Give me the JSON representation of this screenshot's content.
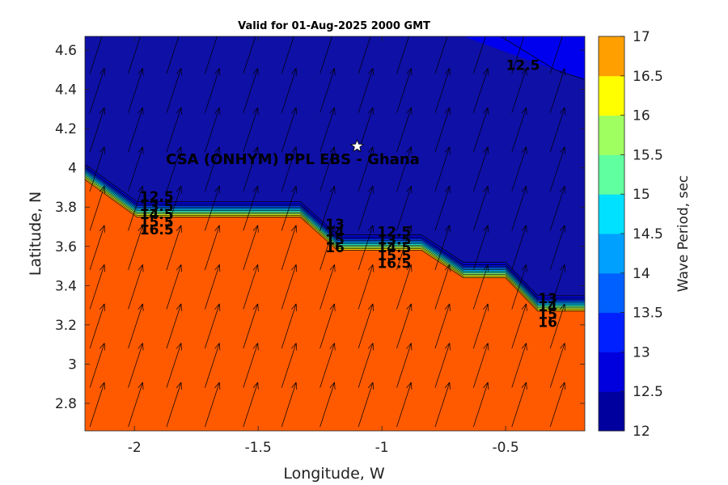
{
  "chart_data": {
    "type": "heatmap",
    "subtype": "filled-contour with direction arrows",
    "title": "Valid for 01-Aug-2025 2000 GMT",
    "xlabel": "Longitude, W",
    "ylabel": "Latitude, N",
    "xlim": [
      -2.2,
      -0.18
    ],
    "ylim": [
      2.66,
      4.67
    ],
    "xticks": [
      -2,
      -1.5,
      -1,
      -0.5
    ],
    "xtick_labels": [
      "-2",
      "-1.5",
      "-1",
      "-0.5"
    ],
    "yticks": [
      2.8,
      3,
      3.2,
      3.4,
      3.6,
      3.8,
      4,
      4.2,
      4.4,
      4.6
    ],
    "ytick_labels": [
      "2.8",
      "3",
      "3.2",
      "3.4",
      "3.6",
      "3.8",
      "4",
      "4.2",
      "4.4",
      "4.6"
    ],
    "grid": false,
    "colorbar": {
      "label": "Wave Period, sec",
      "range": [
        12,
        17
      ],
      "ticks": [
        12,
        12.5,
        13,
        13.5,
        14,
        14.5,
        15,
        15.5,
        16,
        16.5,
        17
      ],
      "tick_labels": [
        "12",
        "12.5",
        "13",
        "13.5",
        "14",
        "14.5",
        "15",
        "15.5",
        "16",
        "16.5",
        "17"
      ],
      "colors": [
        "#00009f",
        "#0000df",
        "#0020ff",
        "#0060ff",
        "#00a0ff",
        "#00e0ff",
        "#60ffa0",
        "#a0ff60",
        "#ffff00",
        "#ffa000",
        "#ff5800"
      ]
    },
    "field": {
      "low_value": 12.3,
      "high_value": 17,
      "low_color": "#0f10a6",
      "high_color": "#ff5a00",
      "corner_region_color": "#0000ee",
      "transition_boundary": [
        {
          "lon": -2.2,
          "lat": 3.94
        },
        {
          "lon": -1.99,
          "lat": 3.75
        },
        {
          "lon": -1.33,
          "lat": 3.75
        },
        {
          "lon": -1.18,
          "lat": 3.58
        },
        {
          "lon": -0.84,
          "lat": 3.58
        },
        {
          "lon": -0.67,
          "lat": 3.44
        },
        {
          "lon": -0.5,
          "lat": 3.44
        },
        {
          "lon": -0.37,
          "lat": 3.27
        },
        {
          "lon": -0.18,
          "lat": 3.27
        }
      ]
    },
    "contour_labels": [
      {
        "text": "12.5",
        "lon": -1.91,
        "lat": 3.83
      },
      {
        "text": "13.5",
        "lon": -1.91,
        "lat": 3.78
      },
      {
        "text": "14.5",
        "lon": -1.91,
        "lat": 3.74
      },
      {
        "text": "15.5",
        "lon": -1.91,
        "lat": 3.7
      },
      {
        "text": "16.5",
        "lon": -1.91,
        "lat": 3.66
      },
      {
        "text": "13",
        "lon": -1.19,
        "lat": 3.69
      },
      {
        "text": "14",
        "lon": -1.19,
        "lat": 3.65
      },
      {
        "text": "15",
        "lon": -1.19,
        "lat": 3.61
      },
      {
        "text": "16",
        "lon": -1.19,
        "lat": 3.57
      },
      {
        "text": "12.5",
        "lon": -0.95,
        "lat": 3.65
      },
      {
        "text": "13.5",
        "lon": -0.95,
        "lat": 3.61
      },
      {
        "text": "14.5",
        "lon": -0.95,
        "lat": 3.57
      },
      {
        "text": "15.5",
        "lon": -0.95,
        "lat": 3.53
      },
      {
        "text": "16.5",
        "lon": -0.95,
        "lat": 3.49
      },
      {
        "text": "13",
        "lon": -0.33,
        "lat": 3.31
      },
      {
        "text": "14",
        "lon": -0.33,
        "lat": 3.27
      },
      {
        "text": "15",
        "lon": -0.33,
        "lat": 3.23
      },
      {
        "text": "16",
        "lon": -0.33,
        "lat": 3.19
      },
      {
        "text": "12.5",
        "lon": -0.43,
        "lat": 4.5
      }
    ],
    "site": {
      "name": "CSA (ONHYM) PPL EBS  - Ghana",
      "lon": -1.1,
      "lat": 4.11,
      "marker": "white star"
    },
    "arrows": {
      "direction": "north-northeast",
      "lon_step": 0.155,
      "lat_step": 0.2
    }
  }
}
